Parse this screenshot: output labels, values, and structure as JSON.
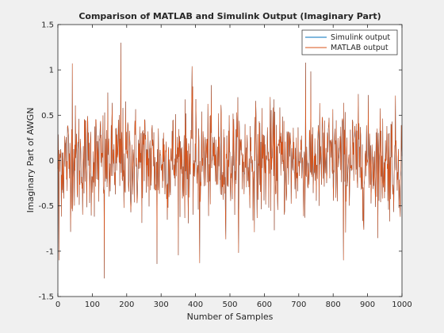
{
  "chart_data": {
    "type": "line",
    "title": "Comparison of MATLAB and Simulink Output (Imaginary Part)",
    "xlabel": "Number of Samples",
    "ylabel": "Imaginary Part of AWGN",
    "xlim": [
      0,
      1000
    ],
    "ylim": [
      -1.5,
      1.5
    ],
    "xticks": [
      "0",
      "100",
      "200",
      "300",
      "400",
      "500",
      "600",
      "700",
      "800",
      "900",
      "1000"
    ],
    "yticks": [
      "-1.5",
      "-1",
      "-0.5",
      "0",
      "0.5",
      "1",
      "1.5"
    ],
    "grid": false,
    "legend_position": "top-right",
    "series": [
      {
        "name": "Simulink output",
        "color": "#0072bd",
        "description_values": "random noise, std approx 0.3, 1000 samples (identical to MATLAB output, hidden underneath)"
      },
      {
        "name": "MATLAB output",
        "color": "#d95319",
        "description_values": "random noise, std approx 0.3, 1000 samples"
      }
    ],
    "n_samples": 1000,
    "noise_std": 0.3,
    "notable_points": [
      {
        "x": 42,
        "y": 1.07
      },
      {
        "x": 183,
        "y": 1.3
      },
      {
        "x": 135,
        "y": -1.3
      },
      {
        "x": 288,
        "y": -1.14
      },
      {
        "x": 390,
        "y": 1.04
      },
      {
        "x": 412,
        "y": -1.13
      },
      {
        "x": 720,
        "y": 1.08
      },
      {
        "x": 830,
        "y": -1.1
      },
      {
        "x": 3,
        "y": -1.1
      }
    ]
  }
}
